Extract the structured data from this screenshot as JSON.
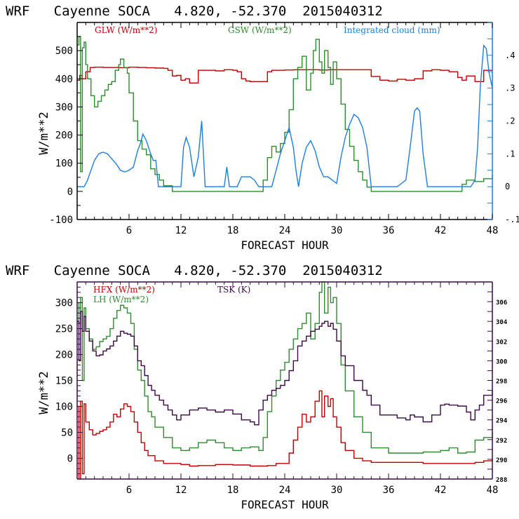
{
  "chart_data": [
    {
      "type": "line",
      "title": "WRF   Cayenne SOCA   4.820, -52.370  2015040312",
      "xlabel": "FORECAST HOUR",
      "ylabel": "W/m**2",
      "xlim": [
        0,
        48
      ],
      "ylim": [
        -100,
        600
      ],
      "y2lim": [
        -0.1,
        0.5
      ],
      "xticks": [
        6,
        12,
        18,
        24,
        30,
        36,
        42,
        48
      ],
      "xtick_labels": [
        "6",
        "12",
        "18",
        "24",
        "30",
        "36",
        "42",
        "48"
      ],
      "yticks": [
        -100,
        0,
        100,
        200,
        300,
        400,
        500
      ],
      "ytick_labels": [
        "-100",
        "0",
        "100",
        "200",
        "300",
        "400",
        "500"
      ],
      "y2ticks": [
        -0.1,
        0,
        0.1,
        0.2,
        0.3,
        0.4
      ],
      "y2tick_labels": [
        "-.1",
        "0",
        ".1",
        ".2",
        ".3",
        ".4"
      ],
      "frame_color": "#000000",
      "right_axis_color": "#1c7fe0",
      "legend": [
        {
          "label": "GLW (W/m**2)",
          "color": "#c00000"
        },
        {
          "label": "GSW (W/m**2)",
          "color": "#2e8b2e"
        },
        {
          "label": "Integrated cloud (mm)",
          "color": "#1c7fe0"
        }
      ],
      "series": [
        {
          "name": "GLW (W/m**2)",
          "color": "#c00000",
          "axis": "left",
          "style": "step",
          "x": [
            0,
            0.3,
            0.6,
            1.0,
            1.5,
            2,
            3,
            4,
            5,
            6,
            7,
            8,
            9,
            10,
            10.5,
            11,
            11.5,
            12,
            12.5,
            13,
            14,
            15,
            16,
            17,
            18,
            18.5,
            19,
            19.5,
            20,
            21,
            22,
            22.5,
            23,
            24,
            25,
            26,
            27,
            28,
            29,
            30,
            31,
            32,
            33,
            34,
            35,
            36,
            37,
            38,
            39,
            40,
            41,
            42,
            43,
            44,
            44.5,
            45,
            46,
            47,
            48
          ],
          "y": [
            395,
            412,
            400,
            425,
            440,
            441,
            440,
            440,
            439,
            441,
            440,
            439,
            438,
            437,
            430,
            410,
            412,
            395,
            400,
            385,
            430,
            430,
            428,
            432,
            430,
            425,
            400,
            392,
            390,
            390,
            425,
            430,
            430,
            431,
            432,
            432,
            432,
            431,
            432,
            432,
            432,
            432,
            432,
            408,
            395,
            392,
            398,
            395,
            400,
            428,
            432,
            430,
            425,
            405,
            395,
            410,
            390,
            430,
            432
          ]
        },
        {
          "name": "GSW (W/m**2)",
          "color": "#2e8b2e",
          "axis": "left",
          "style": "step",
          "x": [
            0,
            0.2,
            0.4,
            0.6,
            0.8,
            1.0,
            1.2,
            1.6,
            2.0,
            2.4,
            2.8,
            3.2,
            3.6,
            4.0,
            4.4,
            4.8,
            5.0,
            5.4,
            5.8,
            6.0,
            6.5,
            7.0,
            7.5,
            8.0,
            8.5,
            9.0,
            9.5,
            10,
            11,
            12,
            18,
            20,
            21,
            21.5,
            22,
            22.5,
            23,
            23.5,
            24,
            24.5,
            25,
            25.5,
            26,
            26.5,
            27,
            27.3,
            27.6,
            28,
            28.3,
            28.6,
            29,
            29.3,
            29.6,
            30,
            30.5,
            31,
            31.5,
            32,
            32.5,
            33,
            33.5,
            34,
            36,
            40,
            43,
            44,
            44.5,
            45,
            46,
            47,
            48
          ],
          "y": [
            520,
            550,
            70,
            510,
            530,
            450,
            400,
            340,
            300,
            320,
            340,
            360,
            380,
            390,
            430,
            450,
            470,
            440,
            420,
            350,
            250,
            180,
            150,
            130,
            80,
            60,
            40,
            20,
            0,
            0,
            0,
            0,
            0,
            40,
            120,
            160,
            140,
            170,
            210,
            290,
            400,
            440,
            480,
            360,
            420,
            500,
            540,
            460,
            420,
            500,
            440,
            380,
            460,
            400,
            310,
            220,
            160,
            110,
            70,
            40,
            15,
            0,
            0,
            0,
            0,
            0,
            25,
            40,
            35,
            45,
            60
          ]
        },
        {
          "name": "Integrated cloud (mm)",
          "color": "#1c7fe0",
          "axis": "right",
          "style": "line",
          "x": [
            0,
            0.8,
            1.2,
            1.6,
            2,
            2.5,
            3,
            3.5,
            4,
            4.5,
            5,
            5.5,
            6,
            6.5,
            7,
            7.3,
            7.6,
            8,
            8.5,
            8.8,
            9.1,
            9.4,
            10,
            11,
            12,
            12.3,
            12.6,
            13,
            13.5,
            14,
            14.4,
            14.8,
            15.2,
            16,
            16.5,
            17,
            17.3,
            17.6,
            18,
            18.5,
            19,
            20,
            20.5,
            21,
            21.5,
            22,
            22.5,
            23,
            23.5,
            24,
            24.5,
            25,
            25.3,
            25.6,
            26,
            26.5,
            27,
            27.5,
            28,
            28.5,
            29,
            29.5,
            30,
            30.5,
            31,
            31.5,
            32,
            32.5,
            33,
            33.5,
            34,
            35,
            37,
            37.5,
            38,
            38.5,
            39,
            39.3,
            39.6,
            40,
            40.5,
            41,
            42,
            43,
            43.5,
            44,
            44.5,
            45,
            45.5,
            46,
            46.3,
            46.6,
            47,
            47.3,
            47.6,
            48
          ],
          "y": [
            0,
            0,
            0.02,
            0.05,
            0.08,
            0.1,
            0.105,
            0.1,
            0.085,
            0.07,
            0.05,
            0.045,
            0.05,
            0.06,
            0.11,
            0.13,
            0.16,
            0.14,
            0.1,
            0.08,
            0.08,
            0.0,
            0.0,
            0.0,
            0.0,
            0.12,
            0.15,
            0.12,
            0.03,
            0.09,
            0.2,
            0.0,
            0.0,
            0.0,
            0.0,
            0.0,
            0.06,
            0.0,
            0.0,
            0.0,
            0.03,
            0.03,
            0.02,
            0.0,
            0.0,
            0.0,
            0.0,
            0.05,
            0.1,
            0.14,
            0.18,
            0.12,
            0.05,
            0.0,
            0.07,
            0.12,
            0.14,
            0.11,
            0.06,
            0.03,
            0.03,
            0.02,
            0.01,
            0.09,
            0.15,
            0.19,
            0.22,
            0.21,
            0.18,
            0.12,
            0.0,
            0.0,
            0.0,
            0.01,
            0.02,
            0.12,
            0.23,
            0.24,
            0.23,
            0.1,
            0.0,
            0.0,
            0.0,
            0.0,
            0.0,
            0.0,
            0.0,
            0.0,
            0.0,
            0.02,
            0.12,
            0.3,
            0.43,
            0.42,
            0.35,
            0.3
          ]
        }
      ]
    },
    {
      "type": "line",
      "title": "WRF   Cayenne SOCA   4.820, -52.370  2015040312",
      "xlabel": "FORECAST HOUR",
      "ylabel": "W/m**2",
      "xlim": [
        0,
        48
      ],
      "ylim": [
        -40,
        340
      ],
      "y2lim": [
        288,
        308
      ],
      "xticks": [
        6,
        12,
        18,
        24,
        30,
        36,
        42,
        48
      ],
      "xtick_labels": [
        "6",
        "12",
        "18",
        "24",
        "30",
        "36",
        "42",
        "48"
      ],
      "yticks": [
        0,
        50,
        100,
        150,
        200,
        250,
        300
      ],
      "ytick_labels": [
        "0",
        "50",
        "100",
        "150",
        "200",
        "250",
        "300"
      ],
      "y2ticks": [
        288,
        290,
        292,
        294,
        296,
        298,
        300,
        302,
        304,
        306
      ],
      "y2tick_labels": [
        "288",
        "290",
        "292",
        "294",
        "296",
        "298",
        "300",
        "302",
        "304",
        "306"
      ],
      "frame_color": "#3b0a45",
      "legend": [
        {
          "label": "HFX (W/m**2)",
          "color": "#c00000"
        },
        {
          "label": "LH  (W/m**2)",
          "color": "#2e8b2e"
        },
        {
          "label": "TSK (K)",
          "color": "#3b0a45"
        }
      ],
      "series": [
        {
          "name": "HFX (W/m**2)",
          "color": "#c00000",
          "axis": "left",
          "style": "step",
          "x": [
            0,
            0.2,
            0.4,
            0.6,
            0.8,
            1.0,
            1.4,
            1.8,
            2.2,
            2.6,
            3.0,
            3.4,
            3.8,
            4.2,
            4.6,
            5.0,
            5.4,
            5.8,
            6.2,
            6.6,
            7.0,
            7.4,
            7.8,
            8.2,
            9,
            10,
            12,
            13,
            14,
            16,
            18,
            20,
            22,
            23,
            24,
            24.5,
            25,
            25.5,
            26,
            26.5,
            27,
            27.5,
            28,
            28.3,
            28.6,
            29,
            29.3,
            29.6,
            30,
            30.5,
            31,
            32,
            33,
            34,
            36,
            38,
            40,
            42,
            44,
            46,
            47,
            48
          ],
          "y": [
            100,
            -40,
            110,
            -30,
            105,
            70,
            55,
            45,
            48,
            52,
            55,
            60,
            70,
            85,
            80,
            95,
            105,
            100,
            90,
            70,
            50,
            30,
            15,
            5,
            -5,
            -10,
            -12,
            -15,
            -14,
            -12,
            -13,
            -15,
            -14,
            -10,
            -10,
            10,
            35,
            60,
            85,
            70,
            80,
            110,
            130,
            80,
            120,
            100,
            115,
            80,
            60,
            30,
            15,
            0,
            -5,
            -8,
            -8,
            -8,
            -10,
            -10,
            -10,
            -8,
            -5,
            -2
          ]
        },
        {
          "name": "LH (W/m**2)",
          "color": "#2e8b2e",
          "axis": "left",
          "style": "step",
          "x": [
            0,
            0.2,
            0.4,
            0.6,
            0.8,
            1.0,
            1.4,
            1.8,
            2.2,
            2.6,
            3.0,
            3.4,
            3.8,
            4.2,
            4.6,
            5.0,
            5.4,
            5.8,
            6.2,
            6.6,
            7.0,
            7.4,
            7.8,
            8.2,
            8.6,
            9,
            10,
            11,
            12,
            13,
            14,
            15,
            16,
            17,
            18,
            19,
            20,
            21,
            21.5,
            22,
            22.5,
            23,
            23.5,
            24,
            24.5,
            25,
            25.5,
            26,
            26.5,
            27,
            27.5,
            28,
            28.3,
            28.6,
            29,
            29.3,
            29.6,
            30,
            30.5,
            31,
            32,
            33,
            34,
            36,
            38,
            40,
            42,
            43,
            44,
            45,
            46,
            47,
            48
          ],
          "y": [
            300,
            260,
            310,
            150,
            290,
            250,
            230,
            210,
            215,
            225,
            230,
            235,
            250,
            270,
            285,
            295,
            290,
            280,
            260,
            210,
            170,
            150,
            120,
            90,
            80,
            60,
            40,
            20,
            15,
            20,
            30,
            35,
            30,
            20,
            15,
            20,
            22,
            15,
            40,
            90,
            120,
            150,
            170,
            185,
            210,
            230,
            250,
            260,
            280,
            230,
            260,
            320,
            340,
            280,
            330,
            300,
            310,
            260,
            180,
            130,
            80,
            50,
            20,
            10,
            10,
            12,
            15,
            20,
            10,
            12,
            35,
            40,
            50
          ]
        },
        {
          "name": "TSK (K)",
          "color": "#3b0a45",
          "axis": "right",
          "style": "step",
          "x": [
            0,
            0.2,
            0.4,
            0.6,
            0.8,
            1.0,
            1.4,
            1.8,
            2.2,
            2.6,
            3.0,
            3.4,
            3.8,
            4.2,
            4.6,
            5.0,
            5.4,
            5.8,
            6.2,
            6.6,
            7.0,
            7.4,
            7.8,
            8.2,
            8.6,
            9,
            9.5,
            10,
            10.5,
            11,
            11.5,
            12,
            13,
            14,
            15,
            16,
            17,
            18,
            19,
            20,
            20.5,
            21,
            21.5,
            22,
            22.5,
            23,
            23.5,
            24,
            24.5,
            25,
            25.5,
            26,
            26.5,
            27,
            27.5,
            28,
            28.3,
            28.6,
            29,
            29.3,
            29.6,
            30,
            30.5,
            31,
            32,
            33,
            33.5,
            34,
            35,
            36,
            37,
            38,
            38.5,
            39,
            40,
            41,
            42,
            42.5,
            43,
            44,
            45,
            45.5,
            46,
            46.5,
            47,
            48
          ],
          "y": [
            304,
            300,
            305,
            303,
            304.5,
            303,
            302,
            301,
            300.5,
            300.6,
            301,
            301.2,
            301.5,
            302,
            302.5,
            303,
            302.8,
            302.7,
            302.5,
            301.5,
            300,
            299.5,
            298.5,
            297.5,
            297,
            296.5,
            296,
            295.5,
            295,
            294.5,
            294,
            294.5,
            295,
            295.2,
            295,
            294.8,
            295,
            294.6,
            294,
            293.8,
            293.5,
            295,
            296,
            296.5,
            297,
            297.2,
            297.5,
            298,
            299,
            300,
            301.5,
            302,
            302.5,
            303,
            303.2,
            303.5,
            303.8,
            304,
            303.5,
            303.8,
            303.2,
            302,
            300.5,
            299.5,
            298,
            297,
            296.5,
            295.5,
            294.5,
            294.5,
            294.2,
            294,
            294.5,
            294.3,
            293.8,
            294.5,
            295.5,
            295.6,
            295.5,
            295.4,
            294.8,
            294,
            295,
            295.5,
            296.5,
            297
          ]
        }
      ]
    }
  ],
  "plots": [
    {
      "title": "WRF   Cayenne SOCA   4.820, -52.370  2015040312",
      "xlabel": "FORECAST HOUR",
      "ylabel": "W/m**2"
    },
    {
      "title": "WRF   Cayenne SOCA   4.820, -52.370  2015040312",
      "xlabel": "FORECAST HOUR",
      "ylabel": "W/m**2"
    }
  ]
}
